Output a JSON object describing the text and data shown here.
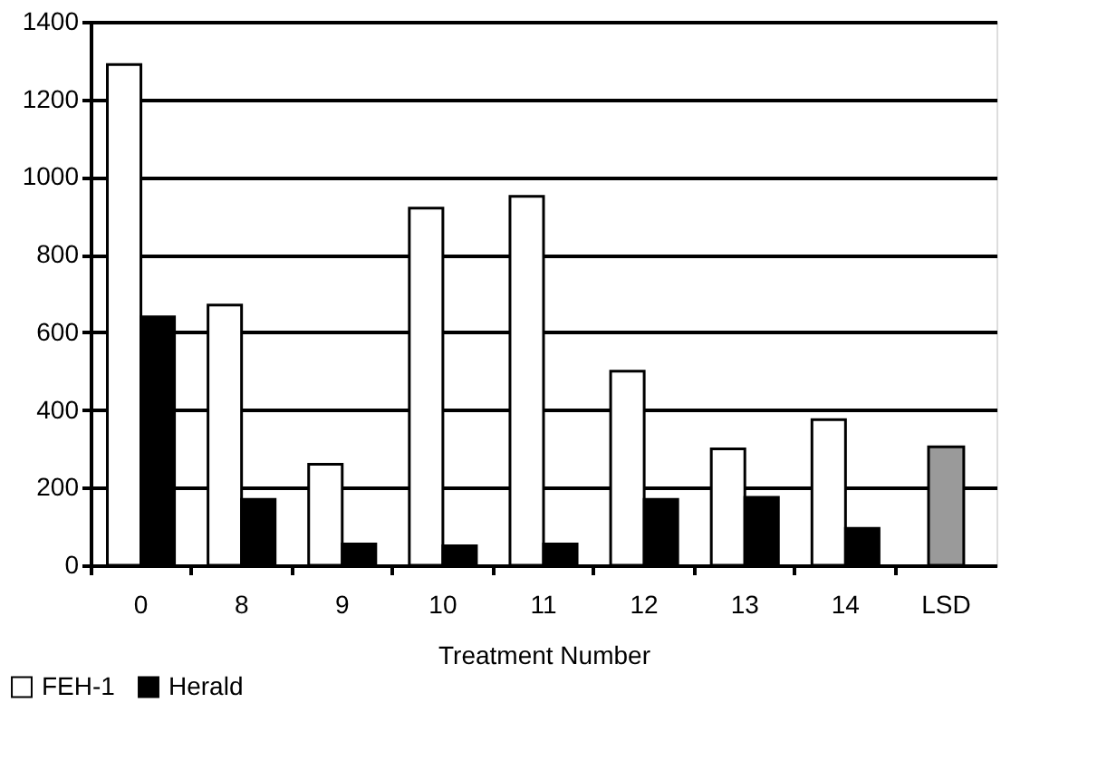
{
  "chart_data": {
    "type": "bar",
    "xlabel": "Treatment Number",
    "categories": [
      "0",
      "8",
      "9",
      "10",
      "11",
      "12",
      "13",
      "14",
      "LSD"
    ],
    "series": [
      {
        "name": "FEH-1",
        "color": "#ffffff",
        "values": [
          1290,
          670,
          260,
          920,
          950,
          500,
          300,
          375,
          null
        ]
      },
      {
        "name": "Herald",
        "color": "#000000",
        "values": [
          640,
          170,
          55,
          50,
          55,
          170,
          175,
          95,
          null
        ]
      },
      {
        "color": "#9a9a9a",
        "values": [
          null,
          null,
          null,
          null,
          null,
          null,
          null,
          null,
          305
        ]
      }
    ],
    "ylim": [
      0,
      1400
    ],
    "yticks": [
      0,
      200,
      400,
      600,
      800,
      1000,
      1200,
      1400
    ],
    "grid": "y",
    "legend": "bottom left"
  }
}
